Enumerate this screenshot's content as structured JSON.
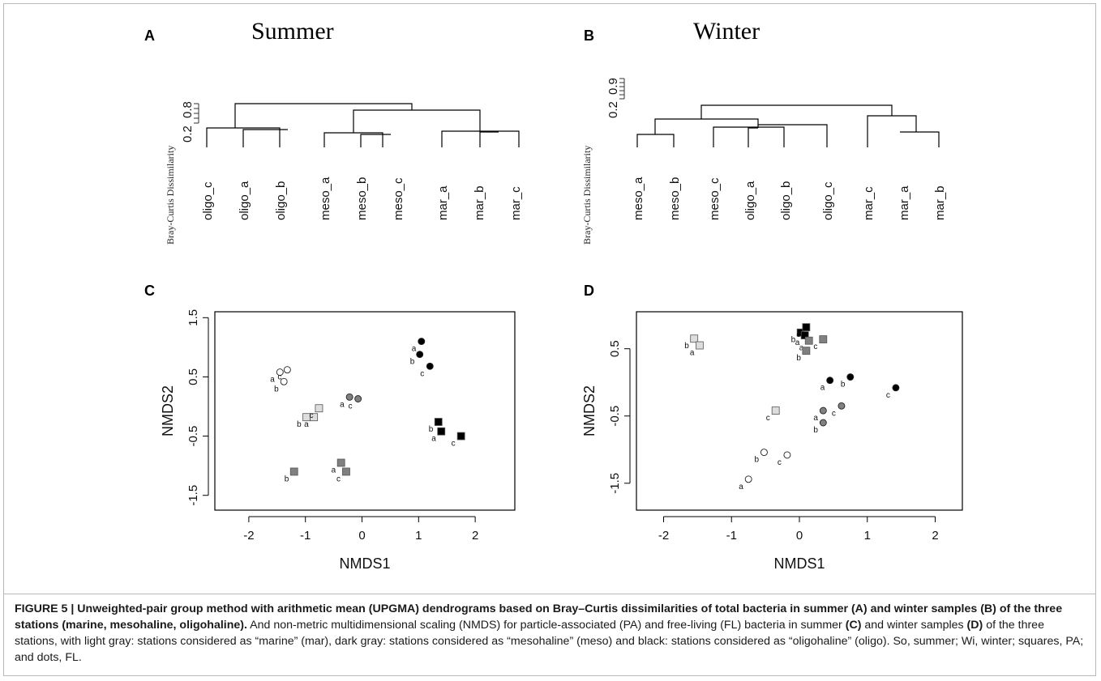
{
  "chart_data": [
    {
      "panel": "A",
      "type": "dendrogram",
      "title": "Summer",
      "ylabel": "Bray-Curtis Dissimilarity",
      "y_ticks": [
        "0.2",
        "0.8"
      ],
      "leaves": [
        "oligo_c",
        "oligo_a",
        "oligo_b",
        "meso_a",
        "meso_b",
        "meso_c",
        "mar_a",
        "mar_b",
        "mar_c"
      ]
    },
    {
      "panel": "B",
      "type": "dendrogram",
      "title": "Winter",
      "ylabel": "Bray-Curtis Dissimilarity",
      "y_ticks": [
        "0.2",
        "0.9"
      ],
      "leaves": [
        "meso_a",
        "meso_b",
        "meso_c",
        "oligo_a",
        "oligo_b",
        "oligo_c",
        "mar_c",
        "mar_a",
        "mar_b"
      ]
    },
    {
      "panel": "C",
      "type": "scatter",
      "xlabel": "NMDS1",
      "ylabel": "NMDS2",
      "xlim": [
        -2.6,
        2.7
      ],
      "ylim": [
        -1.75,
        1.6
      ],
      "x_ticks": [
        -2,
        -1,
        0,
        1,
        2
      ],
      "y_ticks": [
        -1.5,
        -0.5,
        0.5,
        1.5
      ],
      "points": [
        {
          "x": -1.45,
          "y": 0.58,
          "shape": "circle",
          "color": "#ffffff",
          "label": "a"
        },
        {
          "x": -1.32,
          "y": 0.62,
          "shape": "circle",
          "color": "#ffffff",
          "label": "c"
        },
        {
          "x": -1.38,
          "y": 0.42,
          "shape": "circle",
          "color": "#ffffff",
          "label": "b"
        },
        {
          "x": -0.98,
          "y": -0.18,
          "shape": "square",
          "color": "#dddddd",
          "label": "b"
        },
        {
          "x": -0.85,
          "y": -0.18,
          "shape": "square",
          "color": "#dddddd",
          "label": "a"
        },
        {
          "x": -0.76,
          "y": -0.03,
          "shape": "square",
          "color": "#dddddd",
          "label": "c"
        },
        {
          "x": -0.22,
          "y": 0.16,
          "shape": "circle",
          "color": "#808080",
          "label": "a"
        },
        {
          "x": -0.07,
          "y": 0.13,
          "shape": "circle",
          "color": "#808080",
          "label": "c"
        },
        {
          "x": -1.2,
          "y": -1.1,
          "shape": "square",
          "color": "#808080",
          "label": "b"
        },
        {
          "x": -0.37,
          "y": -0.95,
          "shape": "square",
          "color": "#808080",
          "label": "a"
        },
        {
          "x": -0.28,
          "y": -1.1,
          "shape": "square",
          "color": "#808080",
          "label": "c"
        },
        {
          "x": 1.05,
          "y": 1.1,
          "shape": "circle",
          "color": "#000000",
          "label": "a"
        },
        {
          "x": 1.02,
          "y": 0.88,
          "shape": "circle",
          "color": "#000000",
          "label": "b"
        },
        {
          "x": 1.2,
          "y": 0.68,
          "shape": "circle",
          "color": "#000000",
          "label": "c"
        },
        {
          "x": 1.35,
          "y": -0.26,
          "shape": "square",
          "color": "#000000",
          "label": "b"
        },
        {
          "x": 1.4,
          "y": -0.42,
          "shape": "square",
          "color": "#000000",
          "label": "a"
        },
        {
          "x": 1.75,
          "y": -0.5,
          "shape": "square",
          "color": "#000000",
          "label": "c"
        }
      ]
    },
    {
      "panel": "D",
      "type": "scatter",
      "xlabel": "NMDS1",
      "ylabel": "NMDS2",
      "xlim": [
        -2.4,
        2.4
      ],
      "ylim": [
        -1.9,
        1.05
      ],
      "x_ticks": [
        -2,
        -1,
        0,
        1,
        2
      ],
      "y_ticks": [
        -1.5,
        -0.5,
        0.5
      ],
      "points": [
        {
          "x": -1.55,
          "y": 0.65,
          "shape": "square",
          "color": "#dddddd",
          "label": "b"
        },
        {
          "x": -1.47,
          "y": 0.55,
          "shape": "square",
          "color": "#dddddd",
          "label": "a"
        },
        {
          "x": -0.35,
          "y": -0.42,
          "shape": "square",
          "color": "#dddddd",
          "label": "c"
        },
        {
          "x": 0.02,
          "y": 0.74,
          "shape": "square",
          "color": "#000000",
          "label": "b"
        },
        {
          "x": 0.1,
          "y": 0.82,
          "shape": "square",
          "color": "#000000",
          "label": "c"
        },
        {
          "x": 0.08,
          "y": 0.7,
          "shape": "square",
          "color": "#000000",
          "label": "a"
        },
        {
          "x": 0.14,
          "y": 0.62,
          "shape": "square",
          "color": "#808080",
          "label": "a"
        },
        {
          "x": 0.1,
          "y": 0.47,
          "shape": "square",
          "color": "#808080",
          "label": "b"
        },
        {
          "x": 0.35,
          "y": 0.64,
          "shape": "square",
          "color": "#808080",
          "label": "c"
        },
        {
          "x": 0.45,
          "y": 0.03,
          "shape": "circle",
          "color": "#000000",
          "label": "a"
        },
        {
          "x": 0.75,
          "y": 0.08,
          "shape": "circle",
          "color": "#000000",
          "label": "b"
        },
        {
          "x": 1.42,
          "y": -0.08,
          "shape": "circle",
          "color": "#000000",
          "label": "c"
        },
        {
          "x": 0.35,
          "y": -0.42,
          "shape": "circle",
          "color": "#808080",
          "label": "a"
        },
        {
          "x": 0.35,
          "y": -0.6,
          "shape": "circle",
          "color": "#808080",
          "label": "b"
        },
        {
          "x": 0.62,
          "y": -0.35,
          "shape": "circle",
          "color": "#808080",
          "label": "c"
        },
        {
          "x": -0.52,
          "y": -1.04,
          "shape": "circle",
          "color": "#ffffff",
          "label": "b"
        },
        {
          "x": -0.18,
          "y": -1.08,
          "shape": "circle",
          "color": "#ffffff",
          "label": "c"
        },
        {
          "x": -0.75,
          "y": -1.44,
          "shape": "circle",
          "color": "#ffffff",
          "label": "a"
        }
      ]
    }
  ],
  "caption": {
    "bold": "FIGURE 5 | Unweighted-pair group method with arithmetic mean (UPGMA) dendrograms based on Bray–Curtis dissimilarities of total bacteria in summer (A) and winter samples (B) of the three stations (marine, mesohaline, oligohaline).",
    "part1": " And non-metric multidimensional scaling (NMDS) for particle-associated (PA) and free-living (FL) bacteria in summer ",
    "c_ref": "(C)",
    "part2": " and winter samples ",
    "d_ref": "(D)",
    "part3": " of the three stations, with light gray: stations considered as “marine” (mar), dark gray: stations considered as “mesohaline” (meso) and black: stations considered as “oligohaline” (oligo). So, summer; Wi, winter; squares, PA; and dots, FL."
  }
}
